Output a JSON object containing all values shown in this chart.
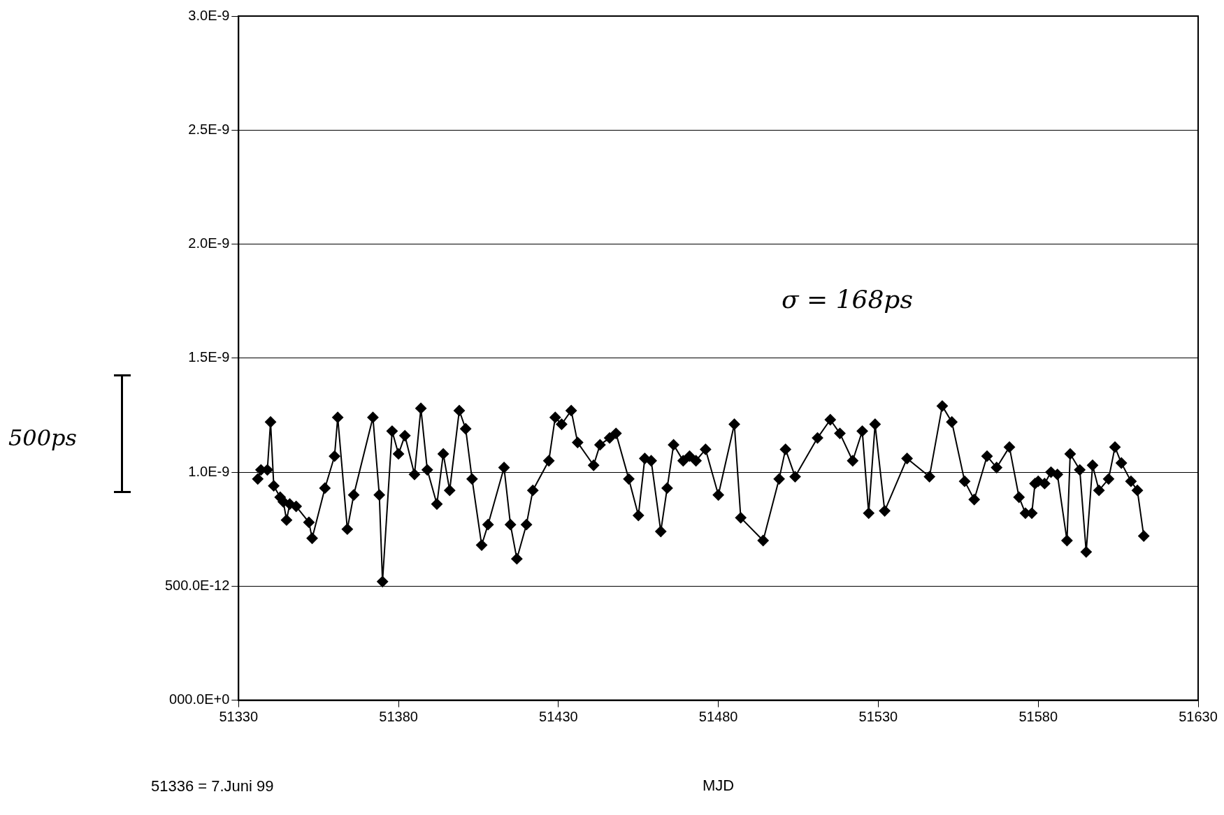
{
  "chart_data": {
    "type": "line",
    "xlabel": "MJD",
    "annotations": [
      "σ = 168ps",
      "500ps",
      "51336 = 7.Juni 99"
    ],
    "x": [
      51336,
      51337,
      51339,
      51340,
      51341,
      51343,
      51344,
      51345,
      51346,
      51348,
      51352,
      51353,
      51357,
      51360,
      51361,
      51364,
      51366,
      51372,
      51374,
      51375,
      51378,
      51380,
      51382,
      51385,
      51387,
      51389,
      51392,
      51394,
      51396,
      51399,
      51401,
      51403,
      51406,
      51408,
      51413,
      51415,
      51417,
      51420,
      51422,
      51427,
      51429,
      51431,
      51434,
      51436,
      51441,
      51443,
      51446,
      51448,
      51452,
      51455,
      51457,
      51459,
      51462,
      51464,
      51466,
      51469,
      51471,
      51473,
      51476,
      51480,
      51485,
      51487,
      51494,
      51499,
      51501,
      51504,
      51511,
      51515,
      51518,
      51522,
      51525,
      51527,
      51529,
      51532,
      51539,
      51546,
      51550,
      51553,
      51557,
      51560,
      51564,
      51567,
      51571,
      51574,
      51576,
      51578,
      51579,
      51580,
      51582,
      51584,
      51586,
      51589,
      51590,
      51593,
      51595,
      51597,
      51599,
      51602,
      51604,
      51606,
      51609,
      51611,
      51613
    ],
    "series": [
      {
        "color": "#000000",
        "values": [
          9.7e-10,
          1.01e-09,
          1.01e-09,
          1.22e-09,
          9.4e-10,
          8.9e-10,
          8.7e-10,
          7.9e-10,
          8.6e-10,
          8.5e-10,
          7.8e-10,
          7.1e-10,
          9.3e-10,
          1.07e-09,
          1.24e-09,
          7.5e-10,
          9e-10,
          1.24e-09,
          9e-10,
          5.2e-10,
          1.18e-09,
          1.08e-09,
          1.16e-09,
          9.9e-10,
          1.28e-09,
          1.01e-09,
          8.6e-10,
          1.08e-09,
          9.2e-10,
          1.27e-09,
          1.19e-09,
          9.7e-10,
          6.8e-10,
          7.7e-10,
          1.02e-09,
          7.7e-10,
          6.2e-10,
          7.7e-10,
          9.2e-10,
          1.05e-09,
          1.24e-09,
          1.21e-09,
          1.27e-09,
          1.13e-09,
          1.03e-09,
          1.12e-09,
          1.15e-09,
          1.17e-09,
          9.7e-10,
          8.1e-10,
          1.06e-09,
          1.05e-09,
          7.4e-10,
          9.3e-10,
          1.12e-09,
          1.05e-09,
          1.07e-09,
          1.05e-09,
          1.1e-09,
          9e-10,
          1.21e-09,
          8e-10,
          7e-10,
          9.7e-10,
          1.1e-09,
          9.8e-10,
          1.15e-09,
          1.23e-09,
          1.17e-09,
          1.05e-09,
          1.18e-09,
          8.2e-10,
          1.21e-09,
          8.3e-10,
          1.06e-09,
          9.8e-10,
          1.29e-09,
          1.22e-09,
          9.6e-10,
          8.8e-10,
          1.07e-09,
          1.02e-09,
          1.11e-09,
          8.9e-10,
          8.2e-10,
          8.2e-10,
          9.5e-10,
          9.6e-10,
          9.5e-10,
          1e-09,
          9.9e-10,
          7e-10,
          1.08e-09,
          1.01e-09,
          6.5e-10,
          1.03e-09,
          9.2e-10,
          9.7e-10,
          1.11e-09,
          1.04e-09,
          9.6e-10,
          9.2e-10,
          7.2e-10
        ]
      }
    ],
    "xlim": [
      51330,
      51630
    ],
    "xticks": [
      51330,
      51380,
      51430,
      51480,
      51530,
      51580,
      51630
    ],
    "ylim": [
      0,
      3e-09
    ],
    "yticks": [
      {
        "value": 0,
        "label": "000.0E+0"
      },
      {
        "value": 5e-10,
        "label": "500.0E-12"
      },
      {
        "value": 1e-09,
        "label": "1.0E-9"
      },
      {
        "value": 1.5e-09,
        "label": "1.5E-9"
      },
      {
        "value": 2e-09,
        "label": "2.0E-9"
      },
      {
        "value": 2.5e-09,
        "label": "2.5E-9"
      },
      {
        "value": 3e-09,
        "label": "3.0E-9"
      }
    ],
    "grid": "y",
    "legend": false,
    "marker": "diamond",
    "line_style": "solid"
  }
}
